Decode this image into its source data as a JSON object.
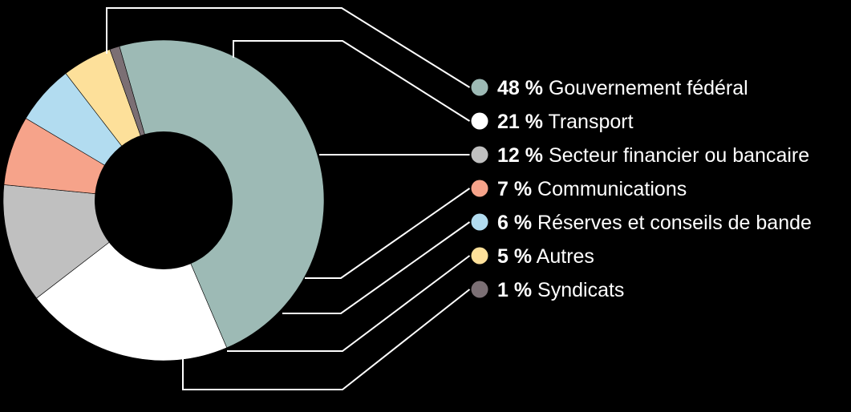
{
  "chart_data": {
    "type": "pie",
    "style": "donut",
    "legend_position": "right",
    "slices": [
      {
        "value": 48,
        "pct_label": "48 %",
        "label": "Gouvernement fédéral",
        "color": "#9dbab5"
      },
      {
        "value": 21,
        "pct_label": "21 %",
        "label": "Transport",
        "color": "#ffffff"
      },
      {
        "value": 12,
        "pct_label": "12 %",
        "label": "Secteur financier ou bancaire",
        "color": "#c0c0c0"
      },
      {
        "value": 7,
        "pct_label": "7 %",
        "label": "Communications",
        "color": "#f6a38a"
      },
      {
        "value": 6,
        "pct_label": "6 %",
        "label": "Réserves et conseils de bande",
        "color": "#b2dcf0"
      },
      {
        "value": 5,
        "pct_label": "5 %",
        "label": "Autres",
        "color": "#fde09a"
      },
      {
        "value": 1,
        "pct_label": "1 %",
        "label": "Syndicats",
        "color": "#7b6f74"
      }
    ]
  },
  "colors": {
    "background": "#000000",
    "leader_line": "#ffffff",
    "text": "#ffffff"
  }
}
